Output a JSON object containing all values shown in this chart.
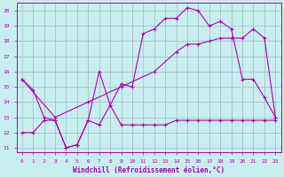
{
  "xlabel": "Windchill (Refroidissement éolien,°C)",
  "bg_color": "#c8eef0",
  "line_color": "#aa00aa",
  "grid_color": "#a0b8c8",
  "xlim_min": -0.5,
  "xlim_max": 23.5,
  "ylim_min": 10.7,
  "ylim_max": 20.5,
  "xticks": [
    0,
    1,
    2,
    3,
    4,
    5,
    6,
    7,
    8,
    9,
    10,
    11,
    12,
    13,
    14,
    15,
    16,
    17,
    18,
    19,
    20,
    21,
    22,
    23
  ],
  "yticks": [
    11,
    12,
    13,
    14,
    15,
    16,
    17,
    18,
    19,
    20
  ],
  "line1_x": [
    0,
    1,
    2,
    3,
    4,
    5,
    6,
    7,
    8,
    9,
    10,
    11,
    12,
    13,
    14,
    15,
    16,
    17,
    18,
    19,
    20,
    21,
    22,
    23
  ],
  "line1_y": [
    15.5,
    14.8,
    13.0,
    12.8,
    11.0,
    11.2,
    12.8,
    16.0,
    13.8,
    15.2,
    15.0,
    18.5,
    18.8,
    19.5,
    19.5,
    20.2,
    20.0,
    19.0,
    19.3,
    18.8,
    15.5,
    15.5,
    14.3,
    13.0
  ],
  "line2_x": [
    0,
    3,
    6,
    9,
    12,
    14,
    15,
    16,
    17,
    18,
    19,
    20,
    21,
    22,
    23
  ],
  "line2_y": [
    15.5,
    13.0,
    14.0,
    15.0,
    16.0,
    17.3,
    17.8,
    17.8,
    18.0,
    18.2,
    18.2,
    18.2,
    18.8,
    18.2,
    13.0
  ],
  "line3_x": [
    0,
    1,
    2,
    3,
    4,
    5,
    6,
    7,
    8,
    9,
    10,
    11,
    12,
    13,
    14,
    15,
    16,
    17,
    18,
    19,
    20,
    21,
    22,
    23
  ],
  "line3_y": [
    12.0,
    12.0,
    12.8,
    12.8,
    11.0,
    11.2,
    12.8,
    12.5,
    13.8,
    12.5,
    12.5,
    12.5,
    12.5,
    12.5,
    12.8,
    12.8,
    12.8,
    12.8,
    12.8,
    12.8,
    12.8,
    12.8,
    12.8,
    12.8
  ]
}
